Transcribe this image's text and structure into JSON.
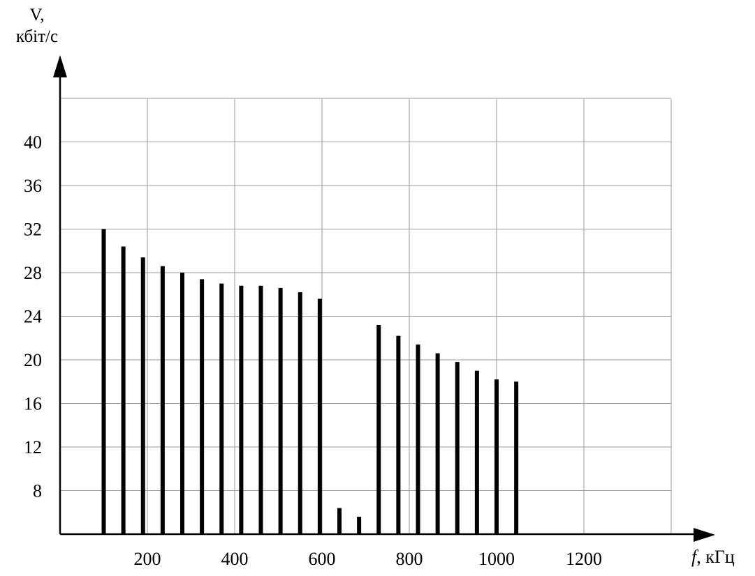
{
  "chart_data": {
    "type": "bar",
    "ylabel_line1": "V,",
    "ylabel_line2": "кбіт/с",
    "xlabel_symbol": "f",
    "xlabel_unit": ", кГц",
    "x_ticks": [
      "200",
      "400",
      "600",
      "800",
      "1000",
      "1200"
    ],
    "y_ticks": [
      "8",
      "12",
      "16",
      "20",
      "24",
      "28",
      "32",
      "36",
      "40"
    ],
    "xlim": [
      0,
      1400
    ],
    "ylim": [
      4,
      44
    ],
    "grid": true,
    "bars": [
      {
        "x": 100,
        "y": 32.0
      },
      {
        "x": 145,
        "y": 30.4
      },
      {
        "x": 190,
        "y": 29.4
      },
      {
        "x": 235,
        "y": 28.6
      },
      {
        "x": 280,
        "y": 28.0
      },
      {
        "x": 325,
        "y": 27.4
      },
      {
        "x": 370,
        "y": 27.0
      },
      {
        "x": 415,
        "y": 26.8
      },
      {
        "x": 460,
        "y": 26.8
      },
      {
        "x": 505,
        "y": 26.6
      },
      {
        "x": 550,
        "y": 26.2
      },
      {
        "x": 595,
        "y": 25.6
      },
      {
        "x": 640,
        "y": 6.4
      },
      {
        "x": 685,
        "y": 5.6
      },
      {
        "x": 730,
        "y": 23.2
      },
      {
        "x": 775,
        "y": 22.2
      },
      {
        "x": 820,
        "y": 21.4
      },
      {
        "x": 865,
        "y": 20.6
      },
      {
        "x": 910,
        "y": 19.8
      },
      {
        "x": 955,
        "y": 19.0
      },
      {
        "x": 1000,
        "y": 18.2
      },
      {
        "x": 1045,
        "y": 18.0
      }
    ],
    "colors": {
      "bar": "#000000",
      "grid": "#9a9a9a",
      "axis": "#000000"
    }
  }
}
